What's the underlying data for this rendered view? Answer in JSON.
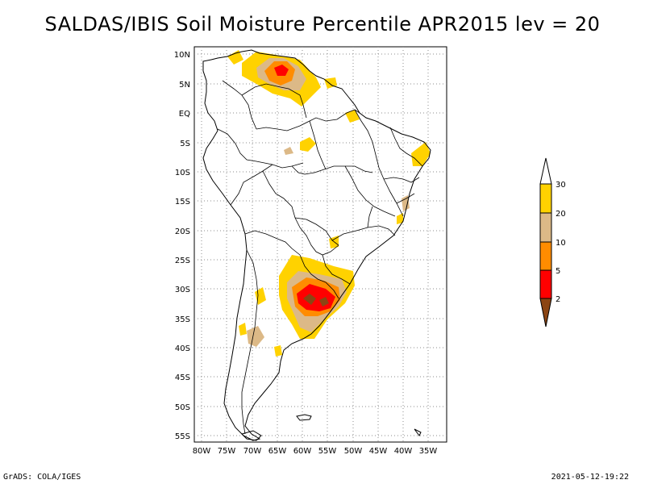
{
  "title": "SALDAS/IBIS Soil Moisture Percentile APR2015 lev = 20",
  "footer": {
    "left": "GrADS: COLA/IGES",
    "right": "2021-05-12-19:22"
  },
  "map": {
    "lat_labels": [
      "10N",
      "5N",
      "EQ",
      "5S",
      "10S",
      "15S",
      "20S",
      "25S",
      "30S",
      "35S",
      "40S",
      "45S",
      "50S",
      "55S"
    ],
    "lon_labels": [
      "80W",
      "75W",
      "70W",
      "65W",
      "60W",
      "55W",
      "50W",
      "45W",
      "40W",
      "35W"
    ]
  },
  "legend": {
    "labels": [
      "30",
      "20",
      "10",
      "5",
      "2"
    ],
    "colors": [
      "#ffffff",
      "#ffd200",
      "#dcb987",
      "#ff8c00",
      "#ff0000",
      "#8b4513"
    ]
  },
  "colors": {
    "below_30": "#ffd200",
    "below_20": "#dcb987",
    "below_10": "#ff8c00",
    "below_5": "#ff0000",
    "below_2": "#8b4513"
  }
}
